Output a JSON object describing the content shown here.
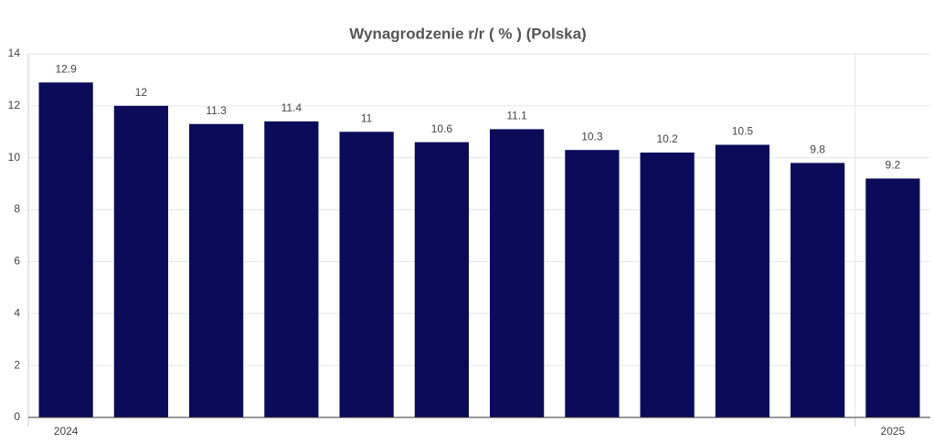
{
  "chart_data": {
    "type": "bar",
    "title": "Wynagrodzenie r/r ( % ) (Polska)",
    "categories": [
      "2024",
      null,
      null,
      null,
      null,
      null,
      null,
      null,
      null,
      null,
      null,
      "2025"
    ],
    "values": [
      12.9,
      12,
      11.3,
      11.4,
      11,
      10.6,
      11.1,
      10.3,
      10.2,
      10.5,
      9.8,
      9.2
    ],
    "color": "#0b0b5a",
    "ylim": [
      0,
      14
    ],
    "yticks": [
      0,
      2,
      4,
      6,
      8,
      10,
      12,
      14
    ],
    "grid": true
  }
}
